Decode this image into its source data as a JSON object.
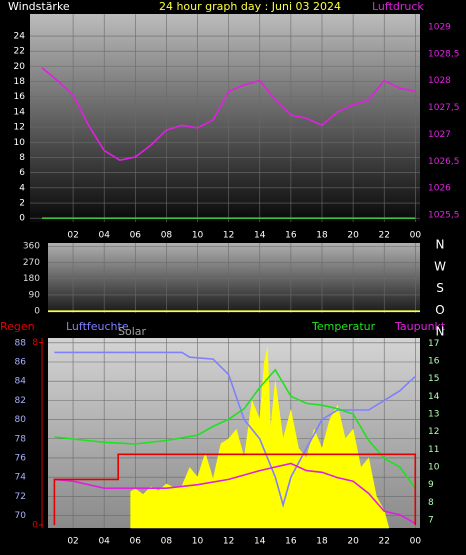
{
  "chart_data": [
    {
      "type": "line",
      "title": "24 hour graph day : Juni 03 2024",
      "ylabel": "Windstärke",
      "y2label": "Luftdruck",
      "xlim": [
        -0.77,
        24.3
      ],
      "xticks": [
        {
          "value": 2,
          "label": "02"
        },
        {
          "value": 4,
          "label": "04"
        },
        {
          "value": 6,
          "label": "06"
        },
        {
          "value": 8,
          "label": "08"
        },
        10,
        12,
        14,
        16,
        18,
        20,
        22,
        {
          "value": 24,
          "label": "00"
        }
      ],
      "ylim": [
        -0.5,
        26.9
      ],
      "yticks": [
        0,
        2,
        4,
        6,
        8,
        10,
        12,
        14,
        16,
        18,
        20,
        22,
        24
      ],
      "y2lim": [
        1025.37,
        1029.24
      ],
      "y2ticks": [
        {
          "value": 1025.5,
          "label": "1025,5"
        },
        1026,
        {
          "value": 1026.5,
          "label": "1026,5"
        },
        1027,
        {
          "value": 1027.5,
          "label": "1027,5"
        },
        1028,
        {
          "value": 1028.5,
          "label": "1028,5"
        },
        1029
      ],
      "grid": true,
      "series": [
        {
          "color": "#40c040",
          "axis": "y",
          "x": [
            0,
            24
          ],
          "values": [
            0,
            0
          ]
        },
        {
          "color": "#e020e0",
          "axis": "y2",
          "x": [
            0,
            1,
            2,
            3,
            4,
            5,
            6,
            7,
            8,
            9,
            10,
            11,
            12,
            13,
            14,
            15,
            16,
            17,
            18,
            19,
            20,
            21,
            22,
            23,
            24
          ],
          "values": [
            1028.24,
            1028.0,
            1027.73,
            1027.17,
            1026.7,
            1026.52,
            1026.58,
            1026.8,
            1027.08,
            1027.17,
            1027.12,
            1027.27,
            1027.8,
            1027.92,
            1028.0,
            1027.64,
            1027.36,
            1027.3,
            1027.17,
            1027.42,
            1027.55,
            1027.64,
            1028.0,
            1027.86,
            1027.8
          ]
        }
      ]
    },
    {
      "type": "line",
      "xlim": [
        0.39,
        24.3
      ],
      "xticks": [
        2,
        4,
        6,
        8,
        10,
        12,
        14,
        16,
        18,
        20,
        22,
        24
      ],
      "ylim": [
        -10,
        378
      ],
      "yticks": [
        0,
        90,
        180,
        270,
        360
      ],
      "y2ticks": [
        {
          "value": 0,
          "label": "N"
        },
        {
          "value": 90,
          "label": "O"
        },
        {
          "value": 180,
          "label": "S"
        },
        {
          "value": 270,
          "label": "W"
        },
        {
          "value": 360,
          "label": "N"
        }
      ],
      "grid": true,
      "series": [
        {
          "color": "#ffff40",
          "axis": "y",
          "x": [
            0.39,
            24.3
          ],
          "values": [
            0,
            0
          ]
        }
      ]
    },
    {
      "type": "line",
      "xlim": [
        0.39,
        24.3
      ],
      "xticks": [
        {
          "value": 2,
          "label": "02"
        },
        {
          "value": 4,
          "label": "04"
        },
        {
          "value": 6,
          "label": "06"
        },
        {
          "value": 8,
          "label": "08"
        },
        10,
        12,
        14,
        16,
        18,
        20,
        22,
        {
          "value": 24,
          "label": "00"
        }
      ],
      "ylim": [
        68.7,
        88.5
      ],
      "yticks": [
        70,
        72,
        74,
        76,
        78,
        80,
        82,
        84,
        86,
        88
      ],
      "y2lim": [
        6.55,
        17.3
      ],
      "y2ticks": [
        7,
        8,
        9,
        10,
        11,
        12,
        13,
        14,
        15,
        16,
        17
      ],
      "y3lim": [
        -0.13,
        8.2
      ],
      "y3ticks": [
        0,
        8
      ],
      "grid": true,
      "series": [
        {
          "name": "Solar",
          "type": "area",
          "color": "#ffff00",
          "axis": "y",
          "x": [
            5.7,
            5.7,
            6,
            6.5,
            7,
            7.5,
            8,
            8.5,
            9,
            9.5,
            10,
            10.5,
            11,
            11.5,
            12,
            12.5,
            13,
            13.5,
            14,
            14.3,
            14.5,
            14.7,
            15,
            15.5,
            16,
            16.5,
            17,
            17.5,
            18,
            18.5,
            19,
            19.5,
            20,
            20.5,
            21,
            21.5,
            22,
            22.3
          ],
          "values": [
            68.7,
            72.5,
            72.8,
            72.2,
            73,
            72.6,
            73.3,
            72.9,
            73.1,
            75,
            74,
            76.5,
            73.8,
            77.5,
            78,
            79,
            76,
            82,
            80,
            86,
            87.5,
            79,
            84,
            78,
            81,
            77,
            76,
            79,
            77,
            80,
            81.5,
            78,
            79,
            75,
            76,
            72,
            70.5,
            68.7
          ]
        },
        {
          "name": "Luftfeuchte",
          "color": "#8080ff",
          "axis": "y",
          "x": [
            0.8,
            9,
            9.5,
            11,
            12,
            13,
            14,
            15,
            15.5,
            16,
            17,
            18,
            19,
            20,
            21,
            22,
            23,
            24
          ],
          "values": [
            87,
            87,
            86.5,
            86.3,
            84.7,
            80,
            78,
            74,
            71.1,
            74,
            77,
            80,
            81,
            81,
            81,
            82,
            83,
            84.5
          ]
        },
        {
          "name": "Temperatur",
          "color": "#20e020",
          "axis": "y2",
          "x": [
            0.8,
            4,
            6,
            8,
            10,
            11,
            12,
            13,
            14,
            15,
            16,
            17,
            18,
            19,
            20,
            21,
            22,
            23,
            24
          ],
          "values": [
            11.7,
            11.4,
            11.3,
            11.5,
            11.8,
            12.3,
            12.7,
            13.3,
            14.5,
            15.5,
            14,
            13.6,
            13.5,
            13.3,
            13,
            11.5,
            10.5,
            10,
            8.8
          ]
        },
        {
          "name": "Taupunkt",
          "color": "#e020e0",
          "axis": "y2",
          "x": [
            0.8,
            2,
            4,
            6,
            8,
            10,
            12,
            14,
            15,
            16,
            17,
            18,
            19,
            20,
            21,
            22,
            23,
            24
          ],
          "values": [
            9.3,
            9.2,
            8.8,
            8.8,
            8.8,
            9,
            9.3,
            9.8,
            10,
            10.2,
            9.8,
            9.7,
            9.4,
            9.2,
            8.5,
            7.5,
            7.3,
            6.8
          ]
        },
        {
          "name": "Regen",
          "color": "#e00000",
          "axis": "y3",
          "x": [
            0.8,
            0.8,
            4.9,
            4.9,
            24,
            24
          ],
          "values": [
            0,
            2,
            2,
            3.1,
            3.1,
            0
          ]
        }
      ]
    }
  ]
}
